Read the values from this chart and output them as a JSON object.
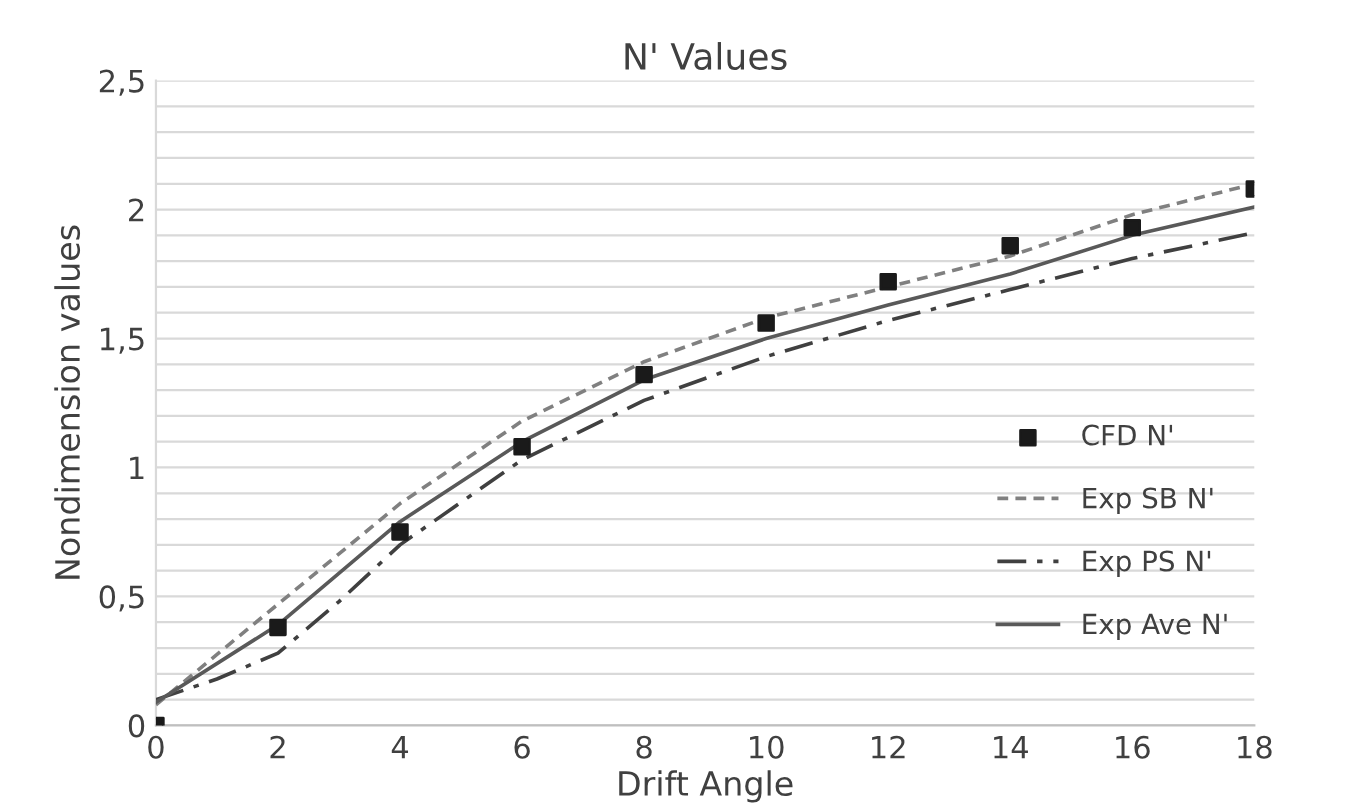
{
  "chart_data": {
    "type": "line",
    "title": "N' Values",
    "xlabel": "Drift Angle",
    "ylabel": "Nondimension values",
    "xlim": [
      0,
      18
    ],
    "xticks": [
      0,
      2,
      4,
      6,
      8,
      10,
      12,
      14,
      16,
      18
    ],
    "ylim": [
      0,
      2.5
    ],
    "yticks": [
      0,
      {
        "value": 0.1,
        "label": null
      },
      {
        "value": 0.2,
        "label": null
      },
      {
        "value": 0.3,
        "label": null
      },
      {
        "value": 0.4,
        "label": null
      },
      {
        "value": 0.5,
        "label": "0,5"
      },
      {
        "value": 0.6,
        "label": null
      },
      {
        "value": 0.7,
        "label": null
      },
      {
        "value": 0.8,
        "label": null
      },
      {
        "value": 0.9,
        "label": null
      },
      1,
      {
        "value": 1.1,
        "label": null
      },
      {
        "value": 1.2,
        "label": null
      },
      {
        "value": 1.3,
        "label": null
      },
      {
        "value": 1.4,
        "label": null
      },
      {
        "value": 1.5,
        "label": "1,5"
      },
      {
        "value": 1.6,
        "label": null
      },
      {
        "value": 1.7,
        "label": null
      },
      {
        "value": 1.8,
        "label": null
      },
      {
        "value": 1.9,
        "label": null
      },
      2,
      {
        "value": 2.1,
        "label": null
      },
      {
        "value": 2.2,
        "label": null
      },
      {
        "value": 2.3,
        "label": null
      },
      {
        "value": 2.4,
        "label": null
      },
      {
        "value": 2.5,
        "label": "2,5"
      }
    ],
    "grid": "y",
    "legend": "right",
    "series": [
      {
        "name": "CFD N'",
        "type": "scatter",
        "marker": "square",
        "color": "#1a1a1a",
        "x": [
          0,
          2,
          4,
          6,
          8,
          10,
          12,
          14,
          16,
          18
        ],
        "values": [
          0,
          0.38,
          0.75,
          1.08,
          1.36,
          1.56,
          1.72,
          1.86,
          1.93,
          2.08
        ]
      },
      {
        "name": "Exp SB N'",
        "line_style": "dashed",
        "color": "#808080",
        "x": [
          0,
          2,
          4,
          6,
          8,
          10,
          12,
          14,
          16,
          18
        ],
        "values": [
          0.08,
          0.47,
          0.86,
          1.18,
          1.41,
          1.58,
          1.7,
          1.82,
          1.98,
          2.1
        ]
      },
      {
        "name": "Exp PS N'",
        "line_style": "dashdot",
        "color": "#404040",
        "x": [
          0,
          1,
          2,
          3,
          4,
          6,
          8,
          10,
          12,
          14,
          16,
          18
        ],
        "values": [
          0.1,
          0.18,
          0.28,
          0.48,
          0.7,
          1.03,
          1.26,
          1.43,
          1.57,
          1.69,
          1.81,
          1.91
        ]
      },
      {
        "name": "Exp Ave N'",
        "line_style": "solid",
        "color": "#595959",
        "x": [
          0,
          2,
          4,
          6,
          8,
          10,
          12,
          14,
          16,
          18
        ],
        "values": [
          0.09,
          0.39,
          0.79,
          1.1,
          1.34,
          1.5,
          1.63,
          1.75,
          1.9,
          2.01
        ]
      }
    ]
  }
}
